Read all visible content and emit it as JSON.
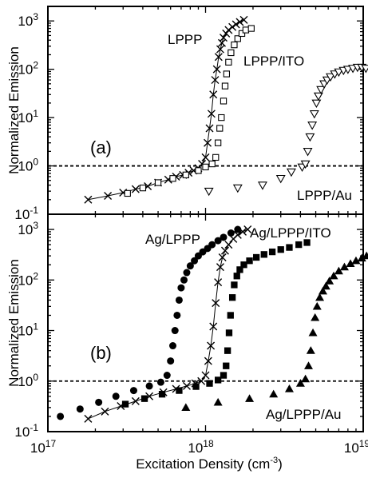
{
  "figure": {
    "xlabel_main": "Excitation Density (cm",
    "xlabel_sup": "-3",
    "xlabel_close": ")"
  },
  "chart_data": [
    {
      "panel_label": "(a)",
      "type": "scatter",
      "xscale": "log",
      "yscale": "log",
      "xlim": [
        1e+17,
        1e+19
      ],
      "ylim": [
        0.1,
        2000
      ],
      "xticks": [
        {
          "base": "10",
          "exp": "17"
        },
        {
          "base": "10",
          "exp": "18"
        },
        {
          "base": "10",
          "exp": "19"
        }
      ],
      "yticks": [
        {
          "base": "10",
          "exp": "-1"
        },
        {
          "base": "10",
          "exp": "0"
        },
        {
          "base": "10",
          "exp": "1"
        },
        {
          "base": "10",
          "exp": "2"
        },
        {
          "base": "10",
          "exp": "3"
        }
      ],
      "ylabel": "Normalized Emission",
      "reference_line_y": 1,
      "series": [
        {
          "name": "LPPP",
          "marker": "x",
          "connected": true,
          "x": [
            1.8e+17,
            2.4e+17,
            3e+17,
            3.6e+17,
            4.3e+17,
            5e+17,
            5.8e+17,
            6.5e+17,
            7.2e+17,
            7.8e+17,
            8.4e+17,
            9e+17,
            9.5e+17,
            1e+18,
            1.03e+18,
            1.06e+18,
            1.09e+18,
            1.12e+18,
            1.15e+18,
            1.18e+18,
            1.21e+18,
            1.24e+18,
            1.27e+18,
            1.3e+18,
            1.35e+18,
            1.4e+18,
            1.48e+18,
            1.56e+18,
            1.65e+18,
            1.75e+18
          ],
          "y": [
            0.2,
            0.24,
            0.28,
            0.33,
            0.38,
            0.45,
            0.52,
            0.6,
            0.65,
            0.72,
            0.8,
            0.9,
            1.1,
            1.5,
            3,
            6,
            12,
            30,
            60,
            100,
            180,
            260,
            350,
            450,
            550,
            650,
            750,
            850,
            950,
            1050
          ]
        },
        {
          "name": "LPPP/ITO",
          "marker": "square",
          "connected": false,
          "x": [
            3.2e+17,
            4e+17,
            5e+17,
            6.2e+17,
            7.5e+17,
            9e+17,
            1e+18,
            1.1e+18,
            1.16e+18,
            1.2e+18,
            1.23e+18,
            1.26e+18,
            1.3e+18,
            1.33e+18,
            1.36e+18,
            1.4e+18,
            1.45e+18,
            1.52e+18,
            1.6e+18,
            1.7e+18,
            1.8e+18,
            1.95e+18
          ],
          "y": [
            0.27,
            0.35,
            0.45,
            0.55,
            0.65,
            0.8,
            0.95,
            1.1,
            1.5,
            3,
            6,
            10,
            22,
            45,
            80,
            140,
            220,
            320,
            430,
            550,
            650,
            700
          ]
        },
        {
          "name": "LPPP/Au",
          "marker": "triangle-down",
          "connected": false,
          "x": [
            1.05e+18,
            1.6e+18,
            2.3e+18,
            3e+18,
            3.5e+18,
            4.1e+18,
            4.3e+18,
            4.45e+18,
            4.6e+18,
            4.75e+18,
            4.9e+18,
            5.05e+18,
            5.2e+18,
            5.4e+18,
            5.65e+18,
            5.9e+18,
            6.2e+18,
            6.6e+18,
            7e+18,
            7.5e+18,
            8e+18,
            8.6e+18,
            9.2e+18,
            9.8e+18,
            1.04e+19
          ],
          "y": [
            0.3,
            0.35,
            0.4,
            0.55,
            0.75,
            0.95,
            1.1,
            2,
            4,
            7,
            12,
            20,
            28,
            38,
            50,
            60,
            70,
            80,
            88,
            95,
            100,
            105,
            110,
            110,
            105
          ]
        }
      ],
      "annotations": [
        "LPPP",
        "LPPP/ITO",
        "LPPP/Au"
      ]
    },
    {
      "panel_label": "(b)",
      "type": "scatter",
      "xscale": "log",
      "yscale": "log",
      "xlim": [
        1e+17,
        1e+19
      ],
      "ylim": [
        0.1,
        2000
      ],
      "xticks": [
        {
          "base": "10",
          "exp": "17"
        },
        {
          "base": "10",
          "exp": "18"
        },
        {
          "base": "10",
          "exp": "19"
        }
      ],
      "yticks": [
        {
          "base": "10",
          "exp": "-1"
        },
        {
          "base": "10",
          "exp": "0"
        },
        {
          "base": "10",
          "exp": "1"
        },
        {
          "base": "10",
          "exp": "2"
        },
        {
          "base": "10",
          "exp": "3"
        }
      ],
      "ylabel": "Normalized Emission",
      "reference_line_y": 1,
      "series": [
        {
          "name": "Ag/LPPP",
          "marker": "circle",
          "connected": false,
          "x": [
            1.2e+17,
            1.6e+17,
            2.1e+17,
            2.7e+17,
            3.5e+17,
            4.4e+17,
            5.2e+17,
            5.7e+17,
            6e+17,
            6.2e+17,
            6.4e+17,
            6.6e+17,
            6.8e+17,
            7e+17,
            7.3e+17,
            7.6e+17,
            8e+17,
            8.5e+17,
            9e+17,
            9.6e+17,
            1.03e+18,
            1.1e+18,
            1.2e+18,
            1.3e+18,
            1.45e+18,
            1.6e+18
          ],
          "y": [
            0.2,
            0.28,
            0.38,
            0.5,
            0.65,
            0.8,
            0.95,
            1.3,
            2.5,
            5,
            10,
            20,
            40,
            70,
            100,
            140,
            190,
            240,
            300,
            360,
            420,
            500,
            600,
            700,
            850,
            1000
          ]
        },
        {
          "name": "Ag/LPPP/ITO",
          "marker": "x",
          "connected": true,
          "x": [
            1.8e+17,
            2.3e+17,
            2.9e+17,
            3.6e+17,
            4.4e+17,
            5.4e+17,
            6.5e+17,
            7.6e+17,
            8.6e+17,
            9.4e+17,
            1e+18,
            1.04e+18,
            1.08e+18,
            1.12e+18,
            1.16e+18,
            1.2e+18,
            1.24e+18,
            1.28e+18,
            1.33e+18,
            1.4e+18,
            1.5e+18,
            1.6e+18,
            1.72e+18,
            1.85e+18
          ],
          "y": [
            0.18,
            0.25,
            0.32,
            0.4,
            0.5,
            0.6,
            0.7,
            0.8,
            0.9,
            1.0,
            1.3,
            2.5,
            5,
            12,
            35,
            90,
            180,
            280,
            380,
            500,
            650,
            780,
            900,
            1000
          ]
        },
        {
          "name": "Ag/LPPP/ITO",
          "marker": "square",
          "connected": false,
          "x": [
            3.1e+17,
            4.1e+17,
            5.3e+17,
            6.8e+17,
            8.7e+17,
            1.06e+18,
            1.2e+18,
            1.3e+18,
            1.35e+18,
            1.38e+18,
            1.41e+18,
            1.44e+18,
            1.48e+18,
            1.52e+18,
            1.58e+18,
            1.65e+18,
            1.75e+18,
            1.9e+18,
            2.1e+18,
            2.35e+18,
            2.65e+18,
            3e+18,
            3.4e+18,
            3.9e+18,
            4.4e+18
          ],
          "y": [
            0.35,
            0.45,
            0.55,
            0.65,
            0.78,
            0.9,
            1.05,
            1.3,
            2,
            4,
            9,
            20,
            45,
            80,
            120,
            160,
            200,
            240,
            280,
            320,
            360,
            400,
            440,
            500,
            550
          ]
        },
        {
          "name": "Ag/LPPP/Au",
          "marker": "triangle-up",
          "connected": false,
          "x": [
            7.5e+17,
            1.2e+18,
            1.9e+18,
            2.7e+18,
            3.4e+18,
            4e+18,
            4.3e+18,
            4.5e+18,
            4.65e+18,
            4.8e+18,
            4.95e+18,
            5.1e+18,
            5.3e+18,
            5.55e+18,
            5.8e+18,
            6.1e+18,
            6.5e+18,
            7e+18,
            7.6e+18,
            8.3e+18,
            9e+18,
            9.8e+18,
            1.05e+19
          ],
          "y": [
            0.3,
            0.38,
            0.45,
            0.55,
            0.7,
            0.9,
            1.1,
            2,
            4,
            9,
            18,
            30,
            45,
            60,
            75,
            95,
            120,
            150,
            180,
            210,
            240,
            270,
            300
          ]
        }
      ],
      "annotations": [
        "Ag/LPPP",
        "Ag/LPPP/ITO",
        "Ag/LPPP/Au"
      ]
    }
  ]
}
